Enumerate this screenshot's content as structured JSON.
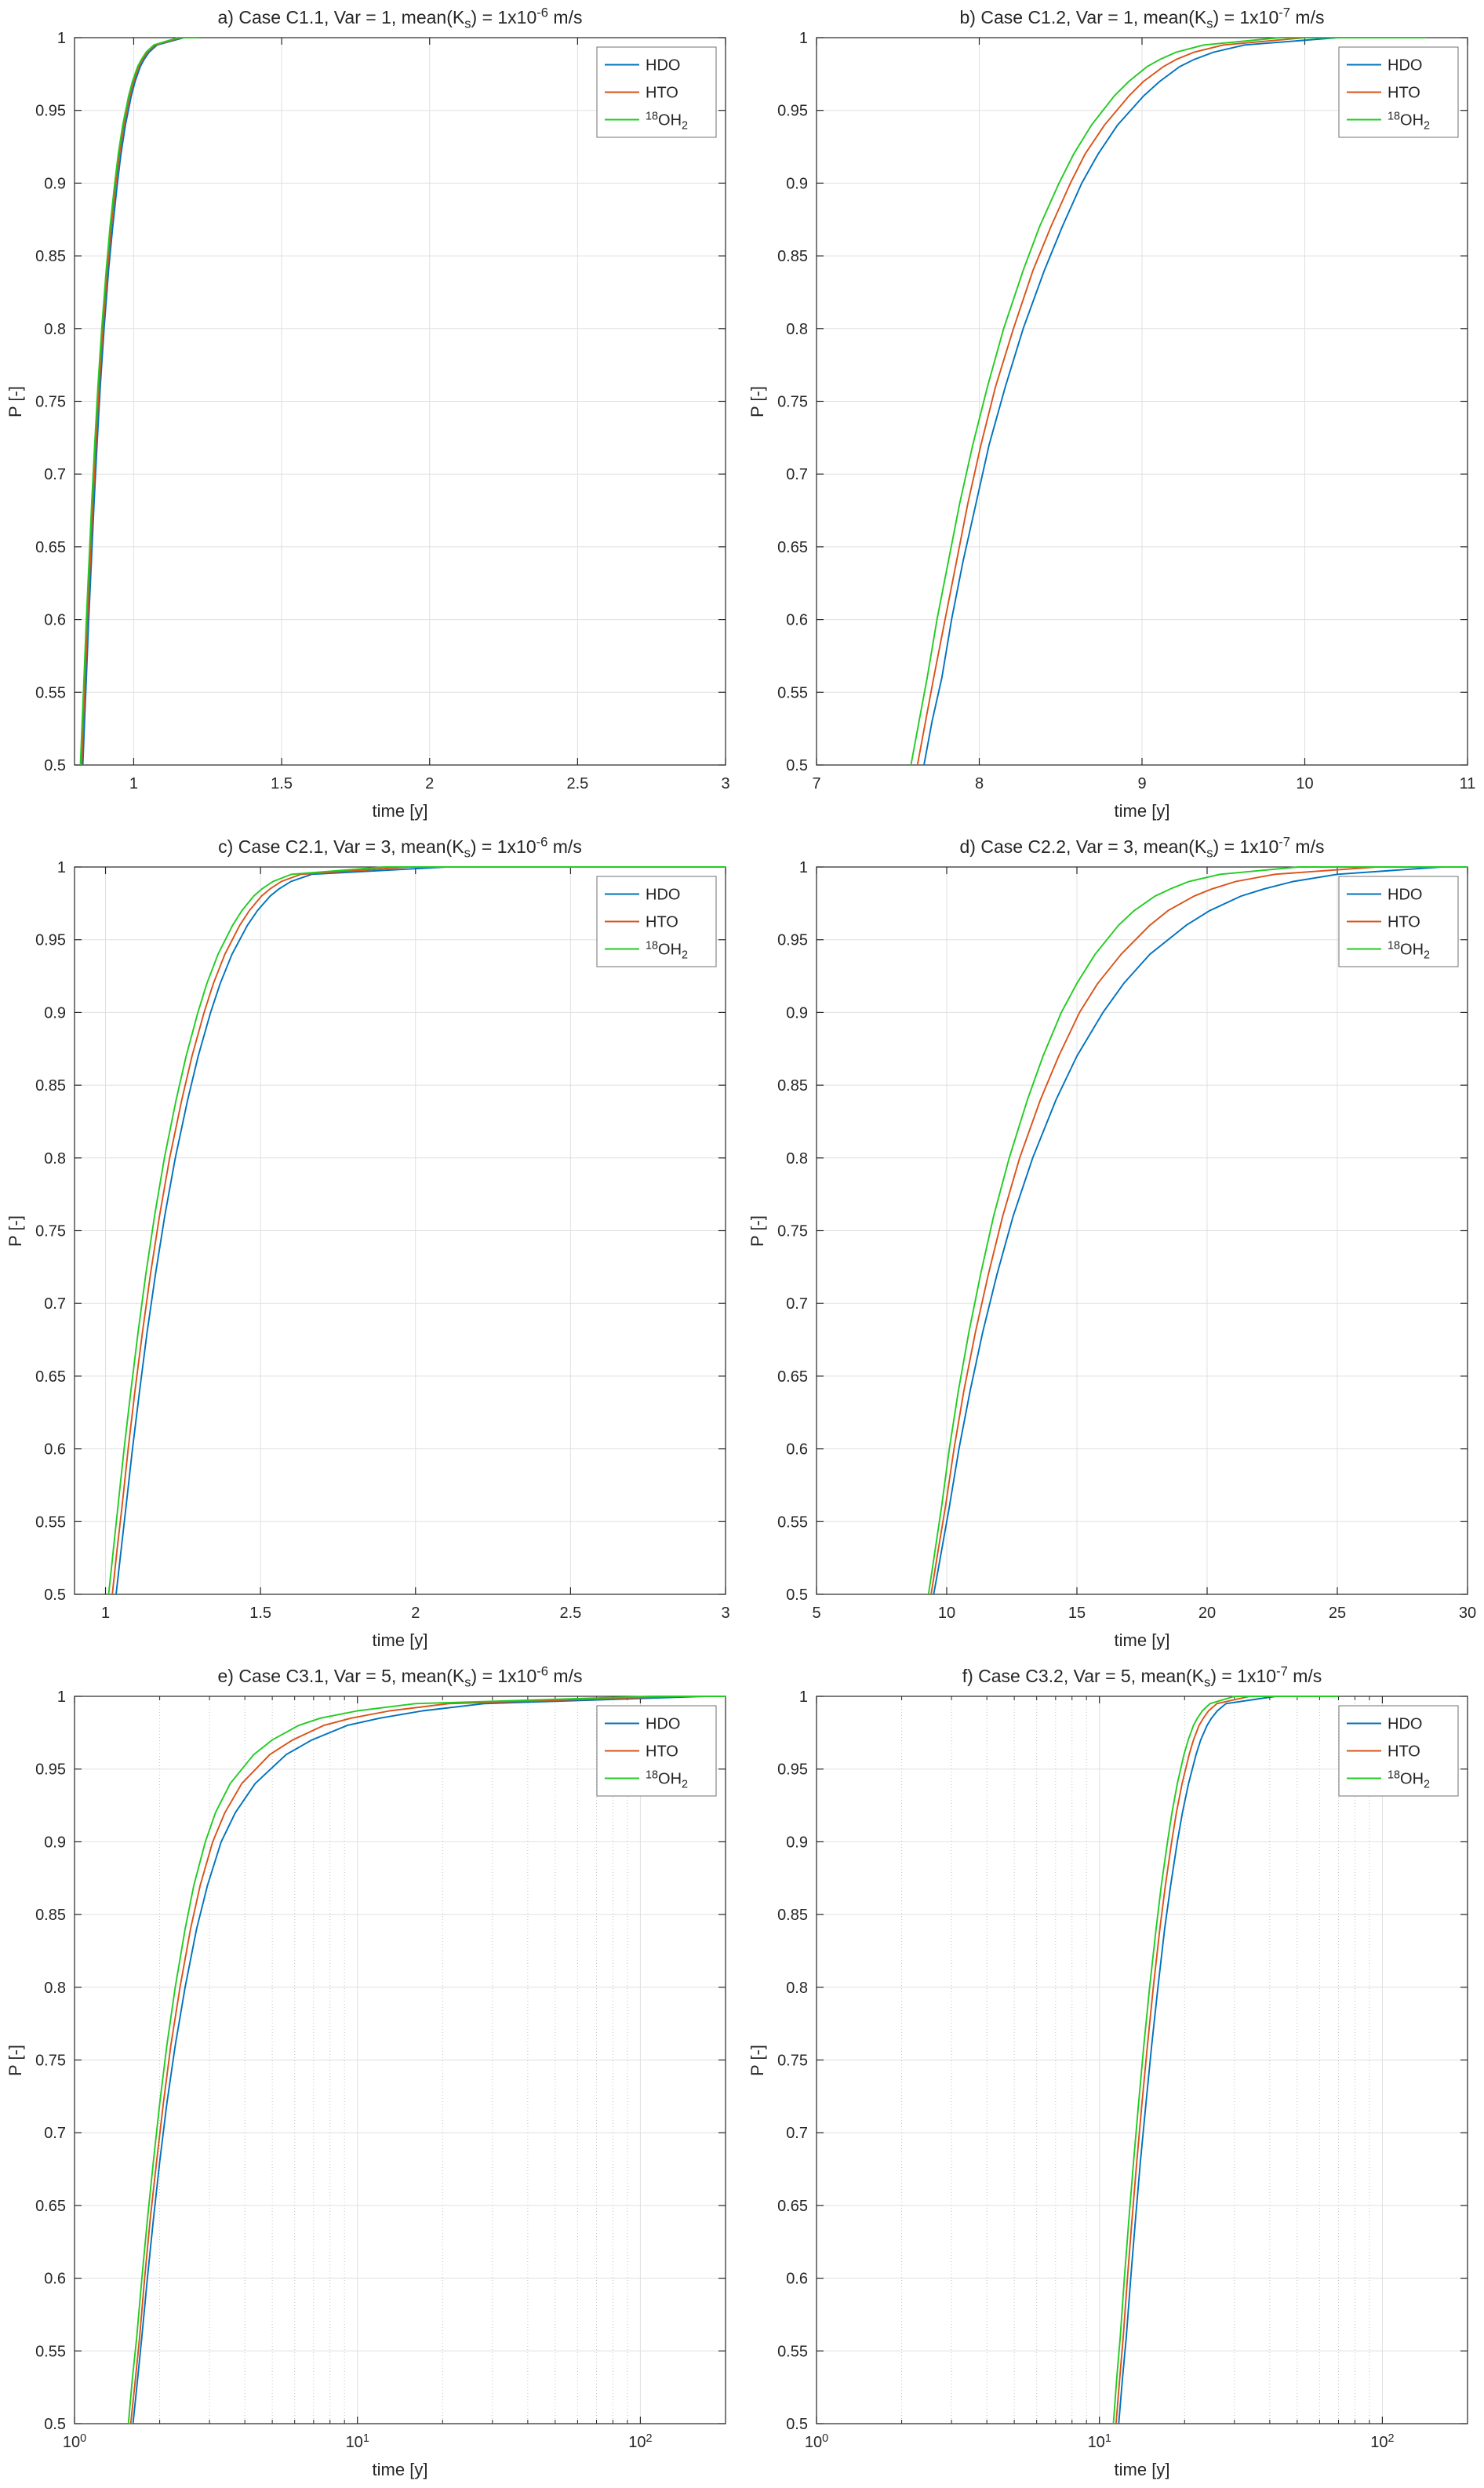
{
  "figure": {
    "description": "Six-panel MATLAB-style figure of cumulative breakthrough probability P vs time for three tracers",
    "background": "#ffffff"
  },
  "styles": {
    "axis_color": "#262626",
    "grid_color": "#e0e0e0",
    "minor_grid_color": "#c2c2c2",
    "text_color": "#262626",
    "legend_border": "#707070",
    "series_colors": {
      "HDO": "#0072BD",
      "HTO": "#D95319",
      "18OH2": "#22CC22"
    }
  },
  "shared": {
    "xlabel": "time [y]",
    "ylabel": "P [-]",
    "ylim": [
      0.5,
      1
    ],
    "yticks": [
      {
        "v": 0.5,
        "label": "0.5"
      },
      {
        "v": 0.55,
        "label": "0.55"
      },
      {
        "v": 0.6,
        "label": "0.6"
      },
      {
        "v": 0.65,
        "label": "0.65"
      },
      {
        "v": 0.7,
        "label": "0.7"
      },
      {
        "v": 0.75,
        "label": "0.75"
      },
      {
        "v": 0.8,
        "label": "0.8"
      },
      {
        "v": 0.85,
        "label": "0.85"
      },
      {
        "v": 0.9,
        "label": "0.9"
      },
      {
        "v": 0.95,
        "label": "0.95"
      },
      {
        "v": 1,
        "label": "1"
      }
    ],
    "p_levels": [
      0.5,
      0.53,
      0.56,
      0.6,
      0.64,
      0.68,
      0.72,
      0.76,
      0.8,
      0.84,
      0.87,
      0.9,
      0.92,
      0.94,
      0.96,
      0.97,
      0.98,
      0.985,
      0.99,
      0.995,
      1
    ],
    "legend_entries": [
      {
        "name": "HDO",
        "label": [
          {
            "t": "HDO"
          }
        ]
      },
      {
        "name": "HTO",
        "label": [
          {
            "t": "HTO"
          }
        ]
      },
      {
        "name": "18OH2",
        "label": [
          {
            "t": "18",
            "s": "sup"
          },
          {
            "t": "OH"
          },
          {
            "t": "2",
            "s": "sub"
          }
        ]
      }
    ]
  },
  "chart_data": [
    {
      "id": "a",
      "type": "line",
      "title": [
        {
          "t": "a) Case C1.1, Var = 1, mean(K"
        },
        {
          "t": "s",
          "s": "sub"
        },
        {
          "t": ") = 1x10"
        },
        {
          "t": "-6",
          "s": "sup"
        },
        {
          "t": " m/s"
        }
      ],
      "xscale": "linear",
      "xlim": [
        0.8,
        3
      ],
      "xticks": [
        {
          "v": 1,
          "label": "1"
        },
        {
          "v": 1.5,
          "label": "1.5"
        },
        {
          "v": 2,
          "label": "2"
        },
        {
          "v": 2.5,
          "label": "2.5"
        },
        {
          "v": 3,
          "label": "3"
        }
      ],
      "series": [
        {
          "name": "HDO",
          "t": [
            0.828,
            0.834,
            0.84,
            0.848,
            0.857,
            0.866,
            0.876,
            0.887,
            0.9,
            0.915,
            0.929,
            0.945,
            0.957,
            0.972,
            0.992,
            1.005,
            1.022,
            1.035,
            1.052,
            1.079,
            1.17
          ],
          "t_end": 1.22
        },
        {
          "name": "HTO",
          "t": [
            0.824,
            0.83,
            0.836,
            0.844,
            0.853,
            0.862,
            0.872,
            0.883,
            0.896,
            0.911,
            0.924,
            0.94,
            0.952,
            0.967,
            0.987,
            1.0,
            1.017,
            1.03,
            1.046,
            1.073,
            1.16
          ],
          "t_end": 1.22
        },
        {
          "name": "18OH2",
          "t": [
            0.82,
            0.826,
            0.832,
            0.84,
            0.849,
            0.858,
            0.868,
            0.879,
            0.892,
            0.907,
            0.92,
            0.936,
            0.948,
            0.963,
            0.983,
            0.996,
            1.013,
            1.026,
            1.042,
            1.068,
            1.15
          ],
          "t_end": 1.22
        }
      ]
    },
    {
      "id": "b",
      "type": "line",
      "title": [
        {
          "t": "b) Case C1.2, Var = 1, mean(K"
        },
        {
          "t": "s",
          "s": "sub"
        },
        {
          "t": ") = 1x10"
        },
        {
          "t": "-7",
          "s": "sup"
        },
        {
          "t": " m/s"
        }
      ],
      "xscale": "linear",
      "xlim": [
        7,
        11
      ],
      "xticks": [
        {
          "v": 7,
          "label": "7"
        },
        {
          "v": 8,
          "label": "8"
        },
        {
          "v": 9,
          "label": "9"
        },
        {
          "v": 10,
          "label": "10"
        },
        {
          "v": 11,
          "label": "11"
        }
      ],
      "series": [
        {
          "name": "HDO",
          "t": [
            7.66,
            7.71,
            7.77,
            7.83,
            7.9,
            7.98,
            8.06,
            8.16,
            8.27,
            8.4,
            8.51,
            8.63,
            8.73,
            8.85,
            9.01,
            9.11,
            9.23,
            9.32,
            9.44,
            9.63,
            10.2
          ],
          "t_end": 10.75
        },
        {
          "name": "HTO",
          "t": [
            7.62,
            7.67,
            7.72,
            7.79,
            7.86,
            7.93,
            8.01,
            8.1,
            8.21,
            8.33,
            8.44,
            8.56,
            8.65,
            8.77,
            8.92,
            9.01,
            9.13,
            9.21,
            9.32,
            9.5,
            10.0
          ],
          "t_end": 10.75
        },
        {
          "name": "18OH2",
          "t": [
            7.58,
            7.63,
            7.68,
            7.74,
            7.81,
            7.88,
            7.96,
            8.05,
            8.15,
            8.27,
            8.37,
            8.49,
            8.58,
            8.69,
            8.83,
            8.92,
            9.03,
            9.11,
            9.21,
            9.38,
            9.85
          ],
          "t_end": 10.75
        }
      ]
    },
    {
      "id": "c",
      "type": "line",
      "title": [
        {
          "t": "c) Case C2.1, Var = 3, mean(K"
        },
        {
          "t": "s",
          "s": "sub"
        },
        {
          "t": ") = 1x10"
        },
        {
          "t": "-6",
          "s": "sup"
        },
        {
          "t": " m/s"
        }
      ],
      "xscale": "linear",
      "xlim": [
        0.9,
        3
      ],
      "xticks": [
        {
          "v": 1,
          "label": "1"
        },
        {
          "v": 1.5,
          "label": "1.5"
        },
        {
          "v": 2,
          "label": "2"
        },
        {
          "v": 2.5,
          "label": "2.5"
        },
        {
          "v": 3,
          "label": "3"
        }
      ],
      "series": [
        {
          "name": "HDO",
          "t": [
            1.034,
            1.05,
            1.066,
            1.087,
            1.11,
            1.134,
            1.161,
            1.191,
            1.225,
            1.265,
            1.299,
            1.339,
            1.37,
            1.408,
            1.458,
            1.49,
            1.531,
            1.56,
            1.598,
            1.665,
            2.1
          ],
          "t_end": 3.0
        },
        {
          "name": "HTO",
          "t": [
            1.022,
            1.037,
            1.053,
            1.073,
            1.095,
            1.119,
            1.145,
            1.174,
            1.207,
            1.246,
            1.279,
            1.318,
            1.348,
            1.385,
            1.433,
            1.464,
            1.503,
            1.531,
            1.567,
            1.63,
            1.98
          ],
          "t_end": 3.0
        },
        {
          "name": "18OH2",
          "t": [
            1.01,
            1.025,
            1.04,
            1.06,
            1.082,
            1.105,
            1.13,
            1.158,
            1.19,
            1.228,
            1.26,
            1.298,
            1.327,
            1.363,
            1.41,
            1.44,
            1.478,
            1.505,
            1.54,
            1.6,
            1.9
          ],
          "t_end": 3.0
        }
      ]
    },
    {
      "id": "d",
      "type": "line",
      "title": [
        {
          "t": "d) Case C2.2, Var = 3, mean(K"
        },
        {
          "t": "s",
          "s": "sub"
        },
        {
          "t": ") = 1x10"
        },
        {
          "t": "-7",
          "s": "sup"
        },
        {
          "t": " m/s"
        }
      ],
      "xscale": "linear",
      "xlim": [
        5,
        30
      ],
      "xticks": [
        {
          "v": 5,
          "label": "5"
        },
        {
          "v": 10,
          "label": "10"
        },
        {
          "v": 15,
          "label": "15"
        },
        {
          "v": 20,
          "label": "20"
        },
        {
          "v": 25,
          "label": "25"
        },
        {
          "v": 30,
          "label": "30"
        }
      ],
      "series": [
        {
          "name": "HDO",
          "t": [
            9.5,
            9.8,
            10.1,
            10.47,
            10.9,
            11.38,
            11.93,
            12.55,
            13.3,
            14.2,
            15.0,
            16.0,
            16.8,
            17.8,
            19.2,
            20.1,
            21.3,
            22.2,
            23.3,
            25.0,
            29.0
          ],
          "t_end": 30
        },
        {
          "name": "HTO",
          "t": [
            9.4,
            9.67,
            9.95,
            10.28,
            10.66,
            11.1,
            11.6,
            12.15,
            12.8,
            13.6,
            14.3,
            15.1,
            15.8,
            16.7,
            17.8,
            18.5,
            19.5,
            20.2,
            21.1,
            22.6,
            26.5
          ],
          "t_end": 30
        },
        {
          "name": "18OH2",
          "t": [
            9.3,
            9.55,
            9.8,
            10.1,
            10.45,
            10.85,
            11.3,
            11.8,
            12.4,
            13.1,
            13.7,
            14.4,
            15.0,
            15.7,
            16.6,
            17.2,
            18.0,
            18.6,
            19.3,
            20.5,
            23.5
          ],
          "t_end": 30
        }
      ]
    },
    {
      "id": "e",
      "type": "line",
      "title": [
        {
          "t": "e) Case C3.1, Var = 5, mean(K"
        },
        {
          "t": "s",
          "s": "sub"
        },
        {
          "t": ") = 1x10"
        },
        {
          "t": "-6",
          "s": "sup"
        },
        {
          "t": " m/s"
        }
      ],
      "xscale": "log",
      "xlim": [
        1,
        200
      ],
      "xticks": [
        {
          "v": 1,
          "label": [
            {
              "t": "10"
            },
            {
              "t": "0",
              "s": "sup"
            }
          ]
        },
        {
          "v": 10,
          "label": [
            {
              "t": "10"
            },
            {
              "t": "1",
              "s": "sup"
            }
          ]
        },
        {
          "v": 100,
          "label": [
            {
              "t": "10"
            },
            {
              "t": "2",
              "s": "sup"
            }
          ]
        }
      ],
      "series": [
        {
          "name": "HDO",
          "t": [
            1.61,
            1.67,
            1.73,
            1.81,
            1.9,
            2.0,
            2.12,
            2.27,
            2.46,
            2.7,
            2.95,
            3.3,
            3.7,
            4.35,
            5.6,
            6.9,
            9.2,
            12.0,
            17.0,
            28.0,
            170
          ],
          "t_end": 200
        },
        {
          "name": "HTO",
          "t": [
            1.58,
            1.64,
            1.7,
            1.77,
            1.85,
            1.95,
            2.06,
            2.19,
            2.36,
            2.57,
            2.78,
            3.08,
            3.4,
            3.9,
            4.9,
            5.9,
            7.6,
            9.5,
            13.0,
            21.0,
            140
          ],
          "t_end": 200
        },
        {
          "name": "18OH2",
          "t": [
            1.55,
            1.6,
            1.66,
            1.73,
            1.81,
            1.9,
            2.0,
            2.12,
            2.27,
            2.46,
            2.64,
            2.9,
            3.15,
            3.55,
            4.3,
            5.0,
            6.2,
            7.4,
            10.0,
            16.0,
            110
          ],
          "t_end": 200
        }
      ]
    },
    {
      "id": "f",
      "type": "line",
      "title": [
        {
          "t": "f) Case C3.2, Var = 5, mean(K"
        },
        {
          "t": "s",
          "s": "sub"
        },
        {
          "t": ") = 1x10"
        },
        {
          "t": "-7",
          "s": "sup"
        },
        {
          "t": " m/s"
        }
      ],
      "xscale": "log",
      "xlim": [
        1,
        200
      ],
      "xticks": [
        {
          "v": 1,
          "label": [
            {
              "t": "10"
            },
            {
              "t": "0",
              "s": "sup"
            }
          ]
        },
        {
          "v": 10,
          "label": [
            {
              "t": "10"
            },
            {
              "t": "1",
              "s": "sup"
            }
          ]
        },
        {
          "v": 100,
          "label": [
            {
              "t": "10"
            },
            {
              "t": "2",
              "s": "sup"
            }
          ]
        }
      ],
      "series": [
        {
          "name": "HDO",
          "t": [
            11.7,
            12.05,
            12.45,
            12.9,
            13.4,
            13.95,
            14.6,
            15.3,
            16.1,
            17.0,
            17.85,
            18.85,
            19.65,
            20.65,
            21.95,
            22.8,
            24.0,
            24.9,
            26.1,
            28.0,
            42
          ],
          "t_end": 70
        },
        {
          "name": "HTO",
          "t": [
            11.45,
            11.78,
            12.14,
            12.56,
            13.03,
            13.55,
            14.13,
            14.78,
            15.5,
            16.35,
            17.1,
            18.0,
            18.7,
            19.6,
            20.75,
            21.5,
            22.5,
            23.3,
            24.3,
            26.0,
            34
          ],
          "t_end": 70
        },
        {
          "name": "18OH2",
          "t": [
            11.2,
            11.5,
            11.85,
            12.25,
            12.7,
            13.2,
            13.75,
            14.35,
            15.05,
            15.85,
            16.55,
            17.4,
            18.05,
            18.85,
            19.9,
            20.6,
            21.5,
            22.2,
            23.1,
            24.6,
            30
          ],
          "t_end": 70
        }
      ]
    }
  ]
}
